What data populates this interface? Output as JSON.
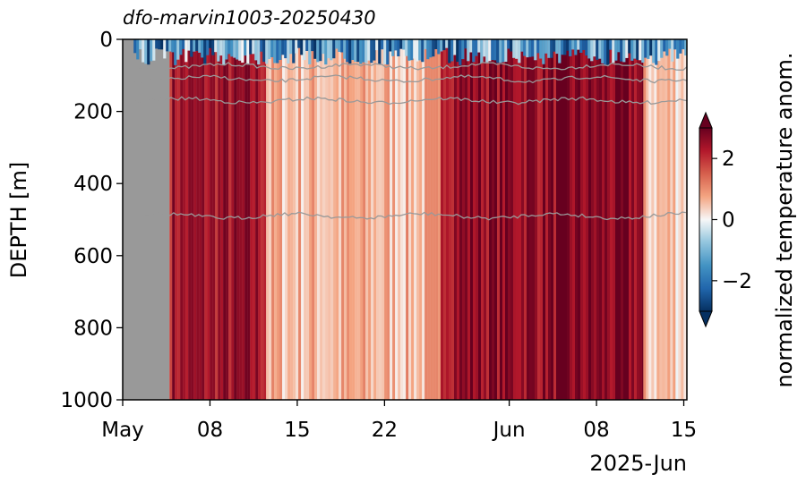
{
  "chart_data": {
    "type": "heatmap",
    "title": "dfo-marvin1003-20250430",
    "ylabel": "DEPTH [m]",
    "xlabel": "2025-Jun",
    "y_axis": {
      "ylim": [
        1000,
        0
      ],
      "inverted": true,
      "ticks": [
        0,
        200,
        400,
        600,
        800,
        1000
      ],
      "tick_labels": [
        "0",
        "200",
        "400",
        "600",
        "800",
        "1000"
      ]
    },
    "x_axis": {
      "xlim": [
        "2025-05-01",
        "2025-06-15T06:00"
      ],
      "ticks": [
        "2025-05-01",
        "2025-05-08",
        "2025-05-15",
        "2025-05-22",
        "2025-06-01",
        "2025-06-08",
        "2025-06-15"
      ],
      "tick_labels": [
        "May",
        "08",
        "15",
        "22",
        "Jun",
        "08",
        "15"
      ]
    },
    "colorbar": {
      "label": "normalized temperature anom.",
      "colormap": "RdBu_r",
      "vmin": -3,
      "vmax": 3,
      "ticks": [
        -2,
        0,
        2
      ],
      "tick_labels": [
        "−2",
        "0",
        "2"
      ],
      "extend": "both"
    },
    "no_data_color": "#999999",
    "no_data_before": "2025-05-04T18:00",
    "anomaly_periods": [
      {
        "start": "2025-05-04T18:00",
        "end": "2025-05-12T12:00",
        "anomaly": 2.4
      },
      {
        "start": "2025-05-12T12:00",
        "end": "2025-05-26T12:00",
        "anomaly": 0.6
      },
      {
        "start": "2025-05-26T12:00",
        "end": "2025-06-11T18:00",
        "anomaly": 2.6
      },
      {
        "start": "2025-06-11T18:00",
        "end": "2025-06-15T06:00",
        "anomaly": 0.5
      }
    ],
    "surface_layer": {
      "depth_range": [
        0,
        60
      ],
      "anomaly": -1.5
    },
    "isotherm_depths_m": [
      75,
      110,
      170,
      490
    ]
  }
}
